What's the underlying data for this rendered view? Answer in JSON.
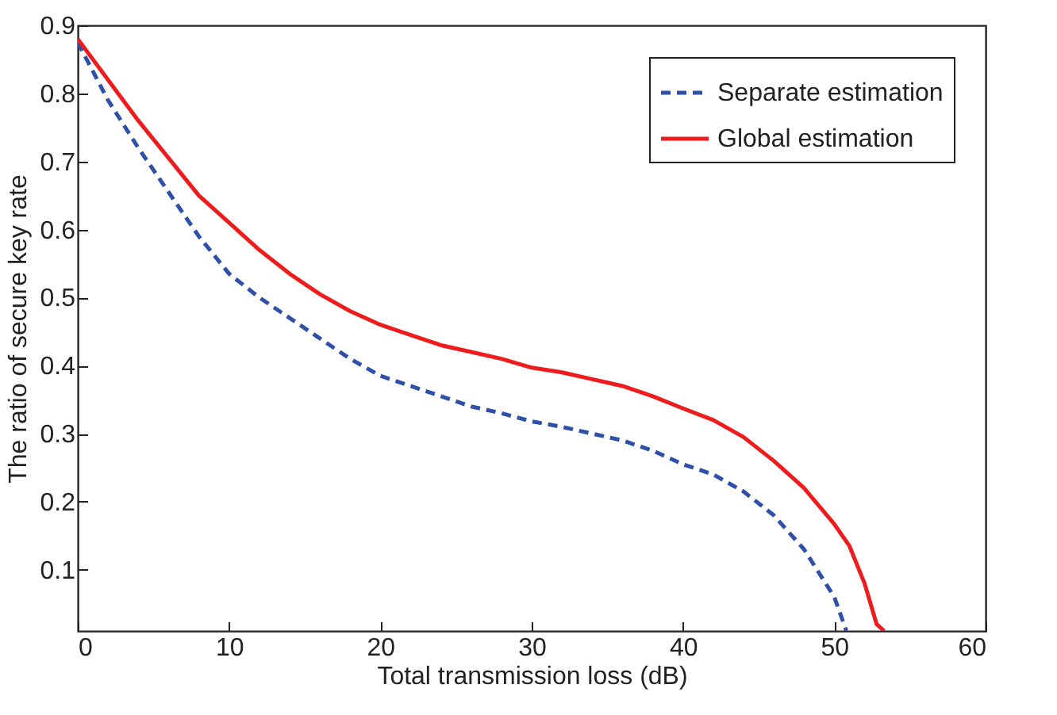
{
  "chart_data": {
    "type": "line",
    "xlabel": "Total transmission loss (dB)",
    "ylabel": "The ratio of secure key rate",
    "xlim": [
      0,
      60
    ],
    "ylim": [
      0.01,
      0.9
    ],
    "xticks": [
      0,
      10,
      20,
      30,
      40,
      50,
      60
    ],
    "yticks": [
      0.1,
      0.2,
      0.3,
      0.4,
      0.5,
      0.6,
      0.7,
      0.8,
      0.9
    ],
    "grid": false,
    "legend": "top right",
    "marker": "none",
    "series": [
      {
        "name": "Separate estimation",
        "color": "#2e50a8",
        "line_style": "dashed",
        "x": [
          0,
          2,
          4,
          6,
          8,
          10,
          12,
          14,
          16,
          18,
          20,
          22,
          24,
          26,
          28,
          30,
          32,
          34,
          36,
          38,
          40,
          42,
          44,
          46,
          48,
          50,
          50.8
        ],
        "values": [
          0.875,
          0.79,
          0.72,
          0.655,
          0.59,
          0.535,
          0.5,
          0.47,
          0.44,
          0.41,
          0.385,
          0.37,
          0.355,
          0.34,
          0.33,
          0.318,
          0.31,
          0.3,
          0.29,
          0.275,
          0.255,
          0.24,
          0.215,
          0.18,
          0.13,
          0.06,
          0.01
        ]
      },
      {
        "name": "Global estimation",
        "color": "#ee1c1c",
        "line_style": "solid",
        "x": [
          0,
          2,
          4,
          6,
          8,
          10,
          12,
          14,
          16,
          18,
          20,
          22,
          24,
          26,
          28,
          30,
          32,
          34,
          36,
          38,
          40,
          42,
          44,
          46,
          48,
          50,
          51,
          52,
          52.8,
          53.3
        ],
        "values": [
          0.88,
          0.82,
          0.76,
          0.705,
          0.65,
          0.61,
          0.57,
          0.535,
          0.505,
          0.48,
          0.46,
          0.445,
          0.43,
          0.42,
          0.41,
          0.397,
          0.39,
          0.38,
          0.37,
          0.355,
          0.337,
          0.32,
          0.295,
          0.26,
          0.22,
          0.167,
          0.135,
          0.08,
          0.02,
          0.01
        ]
      }
    ]
  }
}
